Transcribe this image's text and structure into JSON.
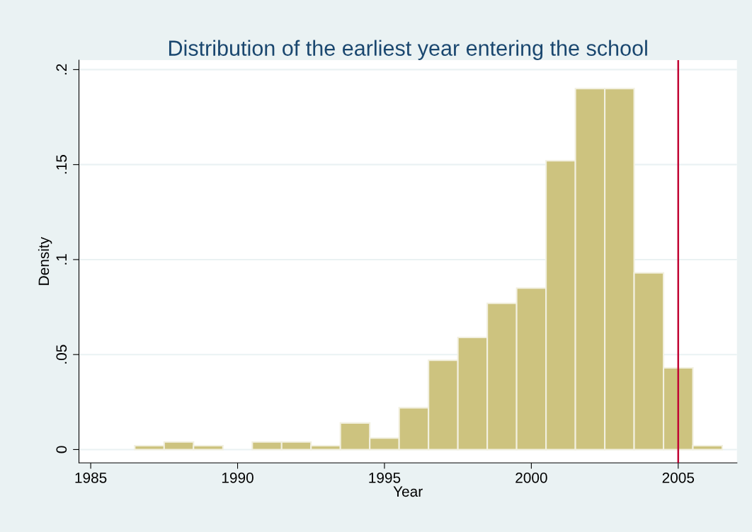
{
  "chart_data": {
    "type": "histogram",
    "title": "Distribution of the earliest year entering the school",
    "xlabel": "Year",
    "ylabel": "Density",
    "bins": [
      1986.5,
      1987.5,
      1988.5,
      1989.5,
      1990.5,
      1991.5,
      1992.5,
      1993.5,
      1994.5,
      1995.5,
      1996.5,
      1997.5,
      1998.5,
      1999.5,
      2000.5,
      2001.5,
      2002.5,
      2003.5,
      2004.5,
      2005.5,
      2006.5
    ],
    "values": [
      0.002,
      0.004,
      0.002,
      0,
      0.004,
      0.004,
      0.002,
      0.014,
      0.006,
      0.022,
      0.047,
      0.059,
      0.077,
      0.085,
      0.152,
      0.19,
      0.19,
      0.093,
      0.043,
      0.002
    ],
    "color": "#cdc37f",
    "xlim": [
      1984.6,
      2007.0
    ],
    "ylim": [
      -0.007,
      0.205
    ],
    "xticks": [
      1985,
      1990,
      1995,
      2000,
      2005
    ],
    "yticks": [
      0,
      {
        "value": 0.05,
        "label": ".05"
      },
      {
        "value": 0.1,
        "label": ".1"
      },
      {
        "value": 0.15,
        "label": ".15"
      },
      {
        "value": 0.2,
        "label": ".2"
      }
    ],
    "ref_lines": [
      {
        "axis": "x",
        "value": 2005,
        "color": "#c10534"
      }
    ],
    "grid": "y"
  }
}
